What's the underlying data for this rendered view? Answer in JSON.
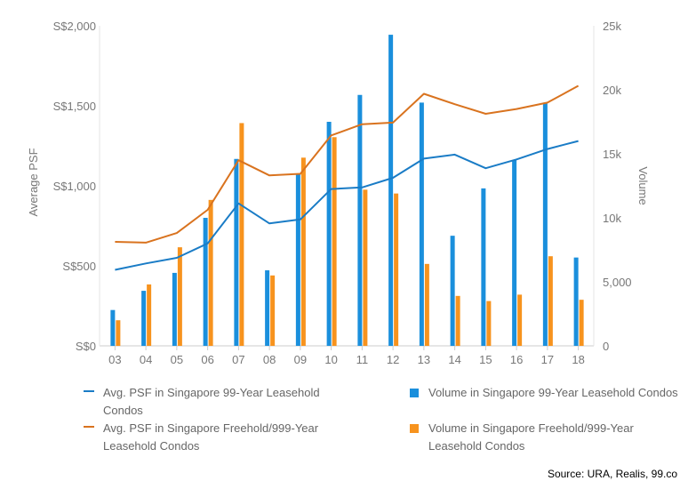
{
  "chart_data": {
    "type": "bar+line",
    "categories": [
      "03",
      "04",
      "05",
      "06",
      "07",
      "08",
      "09",
      "10",
      "11",
      "12",
      "13",
      "14",
      "15",
      "16",
      "17",
      "18"
    ],
    "y_left": {
      "label": "Average PSF",
      "ticks": [
        "S$0",
        "S$500",
        "S$1,000",
        "S$1,500",
        "S$2,000"
      ],
      "range": [
        0,
        2000
      ]
    },
    "y_right": {
      "label": "Volume",
      "ticks": [
        "0",
        "5,000",
        "10k",
        "15k",
        "20k",
        "25k"
      ],
      "range": [
        0,
        25000
      ]
    },
    "grid": false,
    "legend_position": "bottom",
    "series": [
      {
        "name": "Avg. PSF in Singapore 99-Year Leasehold Condos",
        "kind": "line",
        "axis": "left",
        "color": "#1a7cc6",
        "values": [
          475,
          515,
          550,
          640,
          890,
          765,
          790,
          980,
          990,
          1050,
          1170,
          1195,
          1110,
          1165,
          1230,
          1280
        ]
      },
      {
        "name": "Avg. PSF in Singapore Freehold/999-Year Leasehold Condos",
        "kind": "line",
        "axis": "left",
        "color": "#d9731f",
        "values": [
          650,
          645,
          705,
          850,
          1160,
          1065,
          1075,
          1315,
          1385,
          1395,
          1575,
          1510,
          1450,
          1480,
          1520,
          1625
        ]
      },
      {
        "name": "Volume in Singapore 99-Year Leasehold Condos",
        "kind": "bar",
        "axis": "right",
        "color": "#1a8fdc",
        "values": [
          2800,
          4300,
          5700,
          10000,
          14600,
          5900,
          13400,
          17500,
          19600,
          24300,
          19000,
          8600,
          12300,
          14500,
          19000,
          6900
        ]
      },
      {
        "name": "Volume in Singapore Freehold/999-Year Leasehold Condos",
        "kind": "bar",
        "axis": "right",
        "color": "#f7931e",
        "values": [
          2000,
          4800,
          7700,
          11400,
          17400,
          5500,
          14700,
          16300,
          12200,
          11900,
          6400,
          3900,
          3500,
          4000,
          7000,
          3600
        ]
      }
    ]
  },
  "source": "Source: URA, Realis, 99.co"
}
